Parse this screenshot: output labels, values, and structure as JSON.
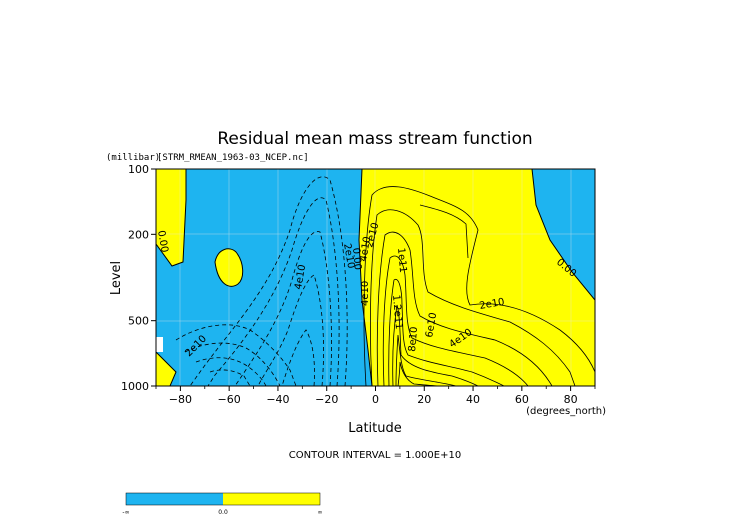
{
  "chart_data": {
    "type": "heatmap",
    "title": "Residual mean mass stream function",
    "dataset_label": "[STRM_RMEAN_1963-03_NCEP.nc]",
    "xlabel": "Latitude",
    "x_units": "(degrees_north)",
    "ylabel": "Level",
    "y_units": "(millibar)",
    "xlim": [
      -90,
      90
    ],
    "ylim": [
      1000,
      100
    ],
    "y_scale": "log",
    "x_ticks": [
      -80,
      -60,
      -40,
      -20,
      0,
      20,
      40,
      60,
      80
    ],
    "y_ticks": [
      100,
      200,
      500,
      1000
    ],
    "contour_interval_text": "CONTOUR INTERVAL = 1.000E+10",
    "fill_colors": {
      "negative": "#1eb4f0",
      "positive": "#ffff00"
    },
    "colorbar_labels": [
      "-∞",
      "0.0",
      "∞"
    ],
    "contour_labels": [
      {
        "text": "0.00",
        "lat": -87,
        "p": 220
      },
      {
        "text": "2e10",
        "lat": -71,
        "p": 660
      },
      {
        "text": "4e10",
        "lat": -27,
        "p": 330
      },
      {
        "text": "2e10",
        "lat": -12,
        "p": 240
      },
      {
        "text": "4e10",
        "lat": -3,
        "p": 260
      },
      {
        "text": "0.00",
        "lat": -7,
        "p": 215
      },
      {
        "text": "2e10",
        "lat": 3,
        "p": 210
      },
      {
        "text": "4e10",
        "lat": -2,
        "p": 410
      },
      {
        "text": "1e11",
        "lat": 10,
        "p": 260
      },
      {
        "text": "1.2e11",
        "lat": 8,
        "p": 500
      },
      {
        "text": "8e10",
        "lat": 12,
        "p": 610
      },
      {
        "text": "6e10",
        "lat": 20,
        "p": 560
      },
      {
        "text": "4e10",
        "lat": 38,
        "p": 640
      },
      {
        "text": "2e10",
        "lat": 46,
        "p": 440
      },
      {
        "text": "0.00",
        "lat": 74,
        "p": 290
      }
    ]
  }
}
